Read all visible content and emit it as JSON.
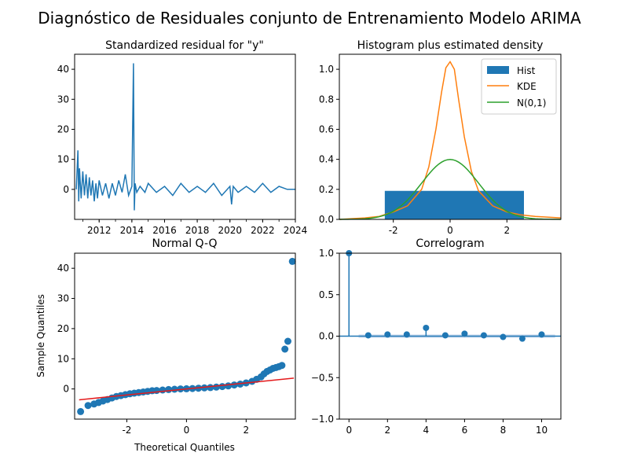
{
  "figure": {
    "suptitle": "Diagnóstico de Residuales conjunto de Entrenamiento Modelo ARIMA"
  },
  "colors": {
    "blue": "#1f77b4",
    "orange": "#ff7f0e",
    "green": "#2ca02c",
    "red": "#e41a1c",
    "band": "#aec7e8"
  },
  "chart_data": [
    {
      "type": "line",
      "title": "Standardized residual for \"y\"",
      "xlabel": "",
      "ylabel": "",
      "x_ticks": [
        "2012",
        "2014",
        "2016",
        "2018",
        "2020",
        "2022",
        "2024"
      ],
      "y_ticks": [
        0,
        10,
        20,
        30,
        40
      ],
      "xlim": [
        2010.5,
        2024.0
      ],
      "ylim": [
        -10,
        45
      ],
      "series": [
        {
          "x": [
            2010.6,
            2010.7,
            2010.75,
            2010.8,
            2010.9,
            2011.0,
            2011.1,
            2011.2,
            2011.3,
            2011.4,
            2011.5,
            2011.6,
            2011.7,
            2011.8,
            2011.9,
            2012.0,
            2012.2,
            2012.4,
            2012.6,
            2012.8,
            2013.0,
            2013.2,
            2013.4,
            2013.6,
            2013.8,
            2014.0,
            2014.1,
            2014.15,
            2014.2,
            2014.3,
            2014.5,
            2014.8,
            2015.0,
            2015.5,
            2016.0,
            2016.5,
            2017.0,
            2017.5,
            2018.0,
            2018.5,
            2019.0,
            2019.5,
            2020.0,
            2020.1,
            2020.2,
            2020.5,
            2021.0,
            2021.5,
            2022.0,
            2022.5,
            2023.0,
            2023.5,
            2024.0
          ],
          "y": [
            0,
            13,
            -4,
            7,
            -3,
            6,
            -2,
            5,
            -3,
            4,
            -2,
            3,
            -4,
            2,
            -3,
            3,
            -2,
            2,
            -3,
            2,
            -2,
            3,
            -1,
            5,
            -2,
            1,
            42,
            -7,
            2,
            -1,
            1,
            -1,
            2,
            -1,
            1,
            -2,
            2,
            -1,
            1,
            -1,
            2,
            -2,
            1,
            -5,
            1,
            -1,
            1,
            -1,
            2,
            -1,
            1,
            0,
            0
          ]
        }
      ]
    },
    {
      "type": "histogram",
      "title": "Histogram plus estimated density",
      "xlabel": "",
      "ylabel": "",
      "x_ticks": [
        -2,
        0,
        2
      ],
      "y_ticks": [
        "0.0",
        "0.2",
        "0.4",
        "0.6",
        "0.8",
        "1.0"
      ],
      "xlim": [
        -3.9,
        3.9
      ],
      "ylim": [
        0,
        1.1
      ],
      "legend": {
        "placement": "top-right",
        "entries": [
          "Hist",
          "KDE",
          "N(0,1)"
        ]
      },
      "hist": {
        "x_start": -2.3,
        "x_end": 2.6,
        "height": 0.19
      },
      "kde": {
        "x": [
          -3.9,
          -3.0,
          -2.5,
          -2.0,
          -1.5,
          -1.0,
          -0.75,
          -0.5,
          -0.3,
          -0.15,
          0.0,
          0.15,
          0.3,
          0.5,
          0.75,
          1.0,
          1.5,
          2.0,
          2.5,
          3.0,
          3.9
        ],
        "y": [
          0.0,
          0.01,
          0.02,
          0.05,
          0.09,
          0.2,
          0.35,
          0.6,
          0.85,
          1.01,
          1.05,
          1.0,
          0.8,
          0.55,
          0.32,
          0.19,
          0.09,
          0.05,
          0.03,
          0.02,
          0.01
        ]
      },
      "normal": {
        "mean": 0,
        "std": 1
      }
    },
    {
      "type": "scatter",
      "title": "Normal Q-Q",
      "xlabel": "Theoretical Quantiles",
      "ylabel": "Sample Quantiles",
      "x_ticks": [
        -2,
        0,
        2
      ],
      "y_ticks": [
        0,
        10,
        20,
        30,
        40
      ],
      "xlim": [
        -3.75,
        3.65
      ],
      "ylim": [
        -10,
        45
      ],
      "reference_line": {
        "x": [
          -3.6,
          3.6
        ],
        "y": [
          -3.6,
          3.6
        ]
      },
      "points": {
        "x": [
          -3.55,
          -3.3,
          -3.1,
          -2.95,
          -2.8,
          -2.65,
          -2.5,
          -2.35,
          -2.2,
          -2.05,
          -1.9,
          -1.75,
          -1.6,
          -1.45,
          -1.3,
          -1.15,
          -1.0,
          -0.8,
          -0.6,
          -0.4,
          -0.2,
          0.0,
          0.2,
          0.4,
          0.6,
          0.8,
          1.0,
          1.2,
          1.4,
          1.6,
          1.8,
          2.0,
          2.2,
          2.35,
          2.5,
          2.6,
          2.7,
          2.8,
          2.9,
          3.0,
          3.1,
          3.2,
          3.3,
          3.4,
          3.55
        ],
        "y": [
          -7.5,
          -5.5,
          -5.0,
          -4.5,
          -4.0,
          -3.5,
          -3.0,
          -2.5,
          -2.2,
          -1.9,
          -1.6,
          -1.4,
          -1.2,
          -1.0,
          -0.8,
          -0.6,
          -0.5,
          -0.35,
          -0.2,
          -0.1,
          0.0,
          0.05,
          0.15,
          0.25,
          0.35,
          0.45,
          0.6,
          0.8,
          1.0,
          1.3,
          1.6,
          2.0,
          2.5,
          3.2,
          4.0,
          5.0,
          5.8,
          6.3,
          6.8,
          7.1,
          7.4,
          7.8,
          13.2,
          15.8,
          42.3
        ]
      }
    },
    {
      "type": "stem",
      "title": "Correlogram",
      "xlabel": "",
      "ylabel": "",
      "x_ticks": [
        0,
        2,
        4,
        6,
        8,
        10
      ],
      "y_ticks": [
        "−1.0",
        "−0.5",
        "0.0",
        "0.5",
        "1.0"
      ],
      "xlim": [
        -0.5,
        11
      ],
      "ylim": [
        -1.0,
        1.0
      ],
      "lags": [
        0,
        1,
        2,
        3,
        4,
        5,
        6,
        7,
        8,
        9,
        10
      ],
      "values": [
        1.0,
        0.01,
        0.02,
        0.02,
        0.1,
        0.01,
        0.03,
        0.01,
        -0.01,
        -0.03,
        0.02
      ],
      "confidence_band": 0.02
    }
  ]
}
